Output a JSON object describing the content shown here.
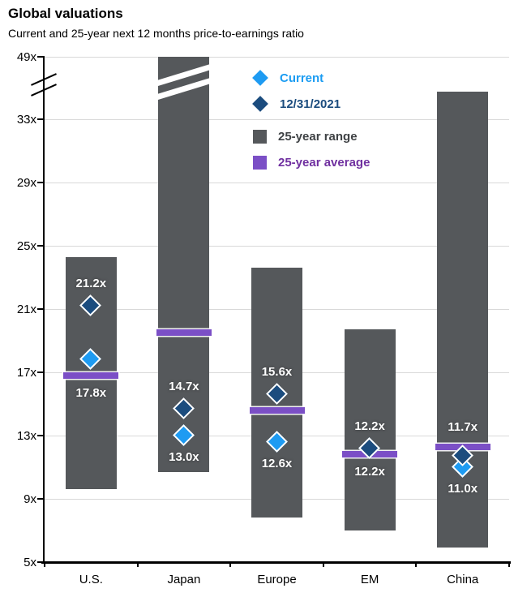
{
  "header": {
    "title": "Global valuations",
    "subtitle": "Current and 25-year next 12 months price-to-earnings ratio"
  },
  "palette": {
    "current_blue": "#1E9BF2",
    "dec2021_navy": "#1B4C7E",
    "range_gray": "#55585B",
    "average_purple": "#7B4FC6",
    "average_purple_text": "#7030A0",
    "range_text": "#3F4245",
    "gridline_gray": "#D9D9D9",
    "axis_black": "#000000",
    "value_label_white": "#FFFFFF"
  },
  "legend": [
    {
      "key": "current",
      "label": "Current",
      "swatch": "diamond",
      "color": "#1E9BF2",
      "text_color": "#1B9CF2"
    },
    {
      "key": "dec2021",
      "label": "12/31/2021",
      "swatch": "diamond",
      "color": "#1B4C7E",
      "text_color": "#1B4C7E"
    },
    {
      "key": "range",
      "label": "25-year range",
      "swatch": "square",
      "color": "#55585B",
      "text_color": "#3F4245"
    },
    {
      "key": "average",
      "label": "25-year average",
      "swatch": "square",
      "color": "#7B4FC6",
      "text_color": "#7030A0"
    }
  ],
  "chart_data": {
    "type": "bar",
    "subtype": "floating-range-bars-with-point-markers",
    "title": "Global valuations",
    "subtitle": "Current and 25-year next 12 months price-to-earnings ratio",
    "xlabel": "",
    "ylabel": "",
    "categories": [
      "U.S.",
      "Japan",
      "Europe",
      "EM",
      "China"
    ],
    "y_axis": {
      "unit": "x",
      "ticks": [
        {
          "value": 49,
          "label": "49x"
        },
        {
          "value": 33,
          "label": "33x"
        },
        {
          "value": 29,
          "label": "29x"
        },
        {
          "value": 25,
          "label": "25x"
        },
        {
          "value": 21,
          "label": "21x"
        },
        {
          "value": 17,
          "label": "17x"
        },
        {
          "value": 13,
          "label": "13x"
        },
        {
          "value": 9,
          "label": "9x"
        },
        {
          "value": 5,
          "label": "5x"
        }
      ],
      "range_displayed": [
        5,
        49
      ],
      "axis_break_between": [
        33,
        49
      ],
      "grid": true
    },
    "legend_position": "inside-top-center",
    "series": [
      {
        "name": "25-year range",
        "type": "range",
        "low": [
          9.6,
          10.7,
          7.8,
          7.0,
          5.9
        ],
        "high": [
          24.3,
          49.0,
          23.6,
          19.7,
          40.1
        ],
        "high_clipped_by_axis_break": [
          false,
          true,
          false,
          false,
          false
        ]
      },
      {
        "name": "25-year average",
        "type": "band",
        "values": [
          16.8,
          19.5,
          14.6,
          11.8,
          12.3
        ]
      },
      {
        "name": "12/31/2021",
        "type": "point",
        "values": [
          21.2,
          14.7,
          15.6,
          12.2,
          11.7
        ],
        "labels": [
          "21.2x",
          "14.7x",
          "15.6x",
          "12.2x",
          "11.7x"
        ]
      },
      {
        "name": "Current",
        "type": "point",
        "values": [
          17.8,
          13.0,
          12.6,
          12.2,
          11.0
        ],
        "labels": [
          "17.8x",
          "13.0x",
          "12.6x",
          "12.2x",
          "11.0x"
        ]
      }
    ]
  }
}
